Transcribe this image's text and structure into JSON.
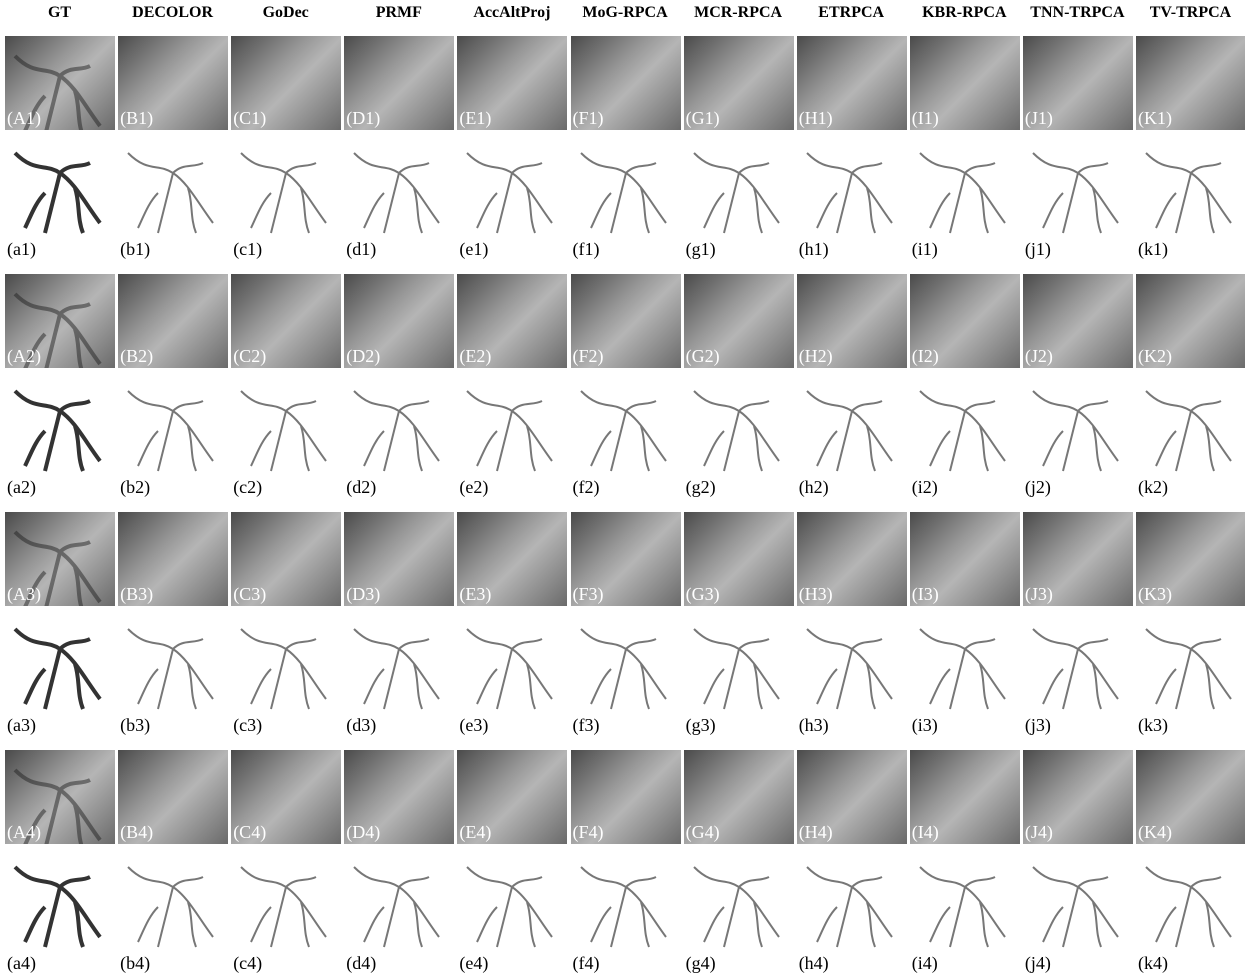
{
  "header": {
    "columns": [
      "GT",
      "DECOLOR",
      "GoDec",
      "PRMF",
      "AccAltProj",
      "MoG-RPCA",
      "MCR-RPCA",
      "ETRPCA",
      "KBR-RPCA",
      "TNN-TRPCA",
      "TV-TRPCA"
    ]
  },
  "rows": [
    {
      "labels": [
        "(A1)",
        "(B1)",
        "(C1)",
        "(D1)",
        "(E1)",
        "(F1)",
        "(G1)",
        "(H1)",
        "(I1)",
        "(J1)",
        "(K1)"
      ]
    },
    {
      "labels": [
        "(a1)",
        "(b1)",
        "(c1)",
        "(d1)",
        "(e1)",
        "(f1)",
        "(g1)",
        "(h1)",
        "(i1)",
        "(j1)",
        "(k1)"
      ]
    },
    {
      "labels": [
        "(A2)",
        "(B2)",
        "(C2)",
        "(D2)",
        "(E2)",
        "(F2)",
        "(G2)",
        "(H2)",
        "(I2)",
        "(J2)",
        "(K2)"
      ]
    },
    {
      "labels": [
        "(a2)",
        "(b2)",
        "(c2)",
        "(d2)",
        "(e2)",
        "(f2)",
        "(g2)",
        "(h2)",
        "(i2)",
        "(j2)",
        "(k2)"
      ]
    },
    {
      "labels": [
        "(A3)",
        "(B3)",
        "(C3)",
        "(D3)",
        "(E3)",
        "(F3)",
        "(G3)",
        "(H3)",
        "(I3)",
        "(J3)",
        "(K3)"
      ]
    },
    {
      "labels": [
        "(a3)",
        "(b3)",
        "(c3)",
        "(d3)",
        "(e3)",
        "(f3)",
        "(g3)",
        "(h3)",
        "(i3)",
        "(j3)",
        "(k3)"
      ]
    },
    {
      "labels": [
        "(A4)",
        "(B4)",
        "(C4)",
        "(D4)",
        "(E4)",
        "(F4)",
        "(G4)",
        "(H4)",
        "(I4)",
        "(J4)",
        "(K4)"
      ]
    },
    {
      "labels": [
        "(a4)",
        "(b4)",
        "(c4)",
        "(d4)",
        "(e4)",
        "(f4)",
        "(g4)",
        "(h4)",
        "(i4)",
        "(j4)",
        "(k4)"
      ]
    }
  ]
}
